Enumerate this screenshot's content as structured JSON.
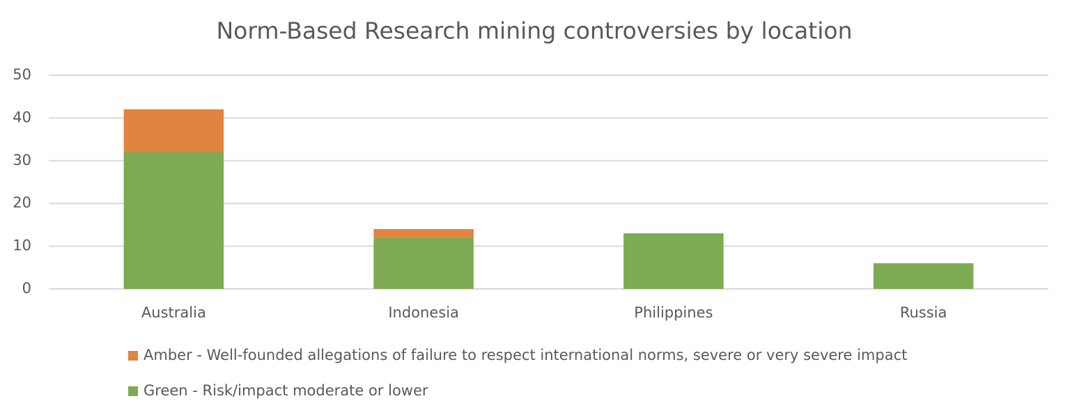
{
  "chart_data": {
    "type": "stacked_bar",
    "title": "Norm-Based Research mining controversies by location",
    "categories": [
      "Australia",
      "Indonesia",
      "Philippines",
      "Russia"
    ],
    "series": [
      {
        "name": "Amber - Well-founded allegations of failure to respect international norms, severe or very severe impact",
        "color": "#e0843f",
        "values": [
          10,
          2,
          0,
          0
        ]
      },
      {
        "name": "Green - Risk/impact moderate or lower",
        "color": "#7daa52",
        "values": [
          32,
          12,
          13,
          6
        ]
      }
    ],
    "ylim": [
      0,
      50
    ],
    "yticks": [
      0,
      10,
      20,
      30,
      40,
      50
    ],
    "grid": true
  }
}
